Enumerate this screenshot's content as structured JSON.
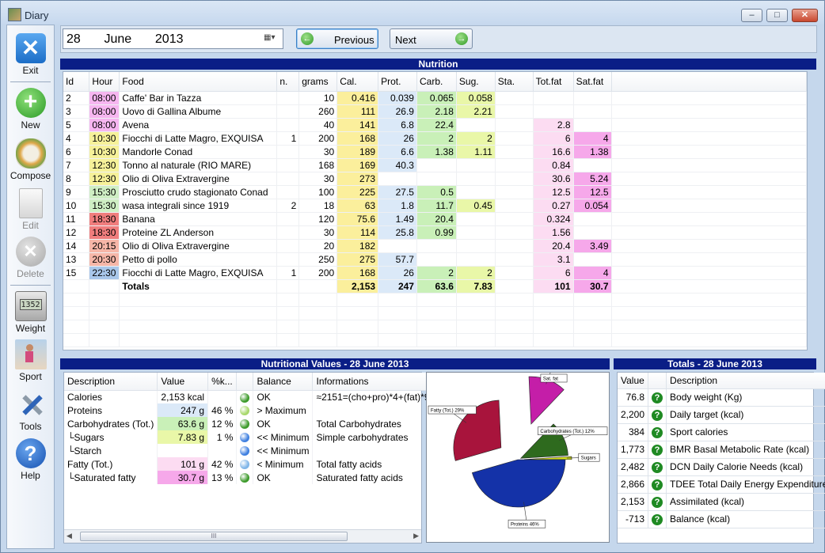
{
  "window": {
    "title": "Diary"
  },
  "sidebar": {
    "items": [
      {
        "label": "Exit"
      },
      {
        "label": "New"
      },
      {
        "label": "Compose"
      },
      {
        "label": "Edit"
      },
      {
        "label": "Delete"
      },
      {
        "label": "Weight"
      },
      {
        "label": "Sport"
      },
      {
        "label": "Tools"
      },
      {
        "label": "Help"
      }
    ],
    "weight_display": "1352"
  },
  "date": {
    "day": "28",
    "month": "June",
    "year": "2013"
  },
  "nav": {
    "previous": "Previous",
    "next": "Next"
  },
  "nutrition": {
    "title": "Nutrition",
    "columns": [
      "Id",
      "Hour",
      "Food",
      "n.",
      "grams",
      "Cal.",
      "Prot.",
      "Carb.",
      "Sug.",
      "Sta.",
      "Tot.fat",
      "Sat.fat"
    ],
    "rows": [
      {
        "id": "2",
        "hour": "08:00",
        "food": "Caffe' Bar in Tazza",
        "n": "",
        "grams": "10",
        "cal": "0.416",
        "prot": "0.039",
        "carb": "0.065",
        "sug": "0.058",
        "sta": "",
        "totfat": "",
        "satfat": ""
      },
      {
        "id": "3",
        "hour": "08:00",
        "food": "Uovo di Gallina Albume",
        "n": "",
        "grams": "260",
        "cal": "111",
        "prot": "26.9",
        "carb": "2.18",
        "sug": "2.21",
        "sta": "",
        "totfat": "",
        "satfat": ""
      },
      {
        "id": "5",
        "hour": "08:00",
        "food": "Avena",
        "n": "",
        "grams": "40",
        "cal": "141",
        "prot": "6.8",
        "carb": "22.4",
        "sug": "",
        "sta": "",
        "totfat": "2.8",
        "satfat": ""
      },
      {
        "id": "4",
        "hour": "10:30",
        "food": "Fiocchi di Latte Magro, EXQUISA",
        "n": "1",
        "grams": "200",
        "cal": "168",
        "prot": "26",
        "carb": "2",
        "sug": "2",
        "sta": "",
        "totfat": "6",
        "satfat": "4"
      },
      {
        "id": "6",
        "hour": "10:30",
        "food": "Mandorle Conad",
        "n": "",
        "grams": "30",
        "cal": "189",
        "prot": "6.6",
        "carb": "1.38",
        "sug": "1.11",
        "sta": "",
        "totfat": "16.6",
        "satfat": "1.38"
      },
      {
        "id": "7",
        "hour": "12:30",
        "food": "Tonno al naturale (RIO MARE)",
        "n": "",
        "grams": "168",
        "cal": "169",
        "prot": "40.3",
        "carb": "",
        "sug": "",
        "sta": "",
        "totfat": "0.84",
        "satfat": ""
      },
      {
        "id": "8",
        "hour": "12:30",
        "food": "Olio di Oliva Extravergine",
        "n": "",
        "grams": "30",
        "cal": "273",
        "prot": "",
        "carb": "",
        "sug": "",
        "sta": "",
        "totfat": "30.6",
        "satfat": "5.24"
      },
      {
        "id": "9",
        "hour": "15:30",
        "food": "Prosciutto crudo stagionato Conad",
        "n": "",
        "grams": "100",
        "cal": "225",
        "prot": "27.5",
        "carb": "0.5",
        "sug": "",
        "sta": "",
        "totfat": "12.5",
        "satfat": "12.5"
      },
      {
        "id": "10",
        "hour": "15:30",
        "food": "wasa integrali since 1919",
        "n": "2",
        "grams": "18",
        "cal": "63",
        "prot": "1.8",
        "carb": "11.7",
        "sug": "0.45",
        "sta": "",
        "totfat": "0.27",
        "satfat": "0.054"
      },
      {
        "id": "11",
        "hour": "18:30",
        "food": "Banana",
        "n": "",
        "grams": "120",
        "cal": "75.6",
        "prot": "1.49",
        "carb": "20.4",
        "sug": "",
        "sta": "",
        "totfat": "0.324",
        "satfat": ""
      },
      {
        "id": "12",
        "hour": "18:30",
        "food": "Proteine ZL Anderson",
        "n": "",
        "grams": "30",
        "cal": "114",
        "prot": "25.8",
        "carb": "0.99",
        "sug": "",
        "sta": "",
        "totfat": "1.56",
        "satfat": ""
      },
      {
        "id": "14",
        "hour": "20:15",
        "food": "Olio di Oliva Extravergine",
        "n": "",
        "grams": "20",
        "cal": "182",
        "prot": "",
        "carb": "",
        "sug": "",
        "sta": "",
        "totfat": "20.4",
        "satfat": "3.49"
      },
      {
        "id": "13",
        "hour": "20:30",
        "food": "Petto di pollo",
        "n": "",
        "grams": "250",
        "cal": "275",
        "prot": "57.7",
        "carb": "",
        "sug": "",
        "sta": "",
        "totfat": "3.1",
        "satfat": ""
      },
      {
        "id": "15",
        "hour": "22:30",
        "food": "Fiocchi di Latte Magro, EXQUISA",
        "n": "1",
        "grams": "200",
        "cal": "168",
        "prot": "26",
        "carb": "2",
        "sug": "2",
        "sta": "",
        "totfat": "6",
        "satfat": "4"
      }
    ],
    "totals": {
      "label": "Totals",
      "cal": "2,153",
      "prot": "247",
      "carb": "63.6",
      "sug": "7.83",
      "totfat": "101",
      "satfat": "30.7"
    },
    "hour_colors": {
      "08:00": "#f6b6f0",
      "10:30": "#f6f19a",
      "12:30": "#f6f19a",
      "15:30": "#cfeec4",
      "18:30": "#f07d7d",
      "20:15": "#f6b6a8",
      "20:30": "#f6b6a8",
      "22:30": "#a9c7ea"
    }
  },
  "nutritional_values": {
    "title": "Nutritional Values - 28 June 2013",
    "columns": [
      "Description",
      "Value",
      "%k...",
      "",
      "Balance",
      "Informations"
    ],
    "rows": [
      {
        "desc": "Calories",
        "value": "2,153 kcal",
        "pct": "",
        "dot": "#3c9a2a",
        "balance": "OK",
        "info": "≈2151=(cho+pro)*4+(fat)*9"
      },
      {
        "desc": "Proteins",
        "value": "247 g",
        "pct": "46 %",
        "dot": "#a7d86a",
        "balance": "> Maximum",
        "info": ""
      },
      {
        "desc": "Carbohydrates (Tot.)",
        "value": "63.6 g",
        "pct": "12 %",
        "dot": "#3c9a2a",
        "balance": "OK",
        "info": "Total Carbohydrates"
      },
      {
        "desc": "└Sugars",
        "value": "7.83 g",
        "pct": "1 %",
        "dot": "#3e7fe0",
        "balance": "<< Minimum",
        "info": "Simple carbohydrates"
      },
      {
        "desc": "└Starch",
        "value": "",
        "pct": "",
        "dot": "#3e7fe0",
        "balance": "<< Minimum",
        "info": ""
      },
      {
        "desc": "Fatty (Tot.)",
        "value": "101 g",
        "pct": "42 %",
        "dot": "#7fb5e8",
        "balance": "< Minimum",
        "info": "Total fatty acids"
      },
      {
        "desc": "└Saturated fatty",
        "value": "30.7 g",
        "pct": "13 %",
        "dot": "#3c9a2a",
        "balance": "OK",
        "info": "Saturated fatty acids"
      }
    ],
    "scroll_grip": "III"
  },
  "chart_data": {
    "type": "pie",
    "slices": [
      {
        "label": "Proteins 46%",
        "value": 46,
        "color": "#1432a8"
      },
      {
        "label": "Fatty (Tot.) 29%",
        "value": 29,
        "color": "#a8143c"
      },
      {
        "label": "Sat. fat",
        "value": 13,
        "color": "#c41ea8"
      },
      {
        "label": "Carbohydrates (Tot.) 12%",
        "value": 12,
        "color": "#2e6a1e"
      },
      {
        "label": "Sugars",
        "value": 1,
        "color": "#d6e11e"
      }
    ]
  },
  "totals_panel": {
    "title": "Totals - 28 June 2013",
    "columns": [
      "Value",
      "",
      "Description"
    ],
    "rows": [
      {
        "value": "76.8",
        "desc": "Body weight (Kg)"
      },
      {
        "value": "2,200",
        "desc": "Daily target (kcal)"
      },
      {
        "value": "384",
        "desc": "Sport calories"
      },
      {
        "value": "1,773",
        "desc": "BMR Basal Metabolic Rate (kcal)"
      },
      {
        "value": "2,482",
        "desc": "DCN Daily Calorie Needs (kcal)"
      },
      {
        "value": "2,866",
        "desc": "TDEE Total Daily Energy Expenditure"
      },
      {
        "value": "2,153",
        "desc": "Assimilated (kcal)"
      },
      {
        "value": "-713",
        "desc": "Balance (kcal)"
      }
    ]
  }
}
